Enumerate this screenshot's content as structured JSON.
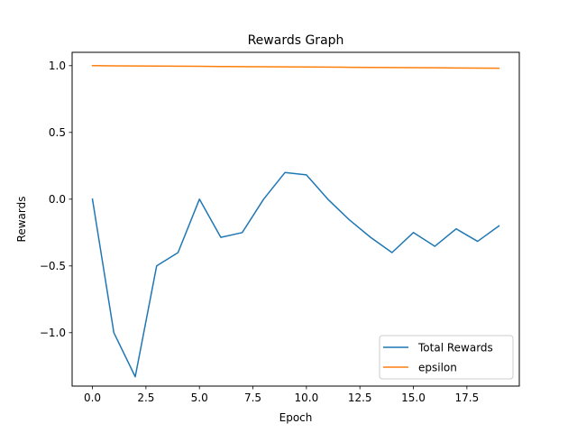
{
  "chart_data": {
    "type": "line",
    "title": "Rewards Graph",
    "xlabel": "Epoch",
    "ylabel": "Rewards",
    "xlim": [
      -0.95,
      19.95
    ],
    "ylim": [
      -1.4,
      1.1
    ],
    "x": [
      0,
      1,
      2,
      3,
      4,
      5,
      6,
      7,
      8,
      9,
      10,
      11,
      12,
      13,
      14,
      15,
      16,
      17,
      18,
      19
    ],
    "xticks": [
      0.0,
      2.5,
      5.0,
      7.5,
      10.0,
      12.5,
      15.0,
      17.5
    ],
    "xtick_labels": [
      "0.0",
      "2.5",
      "5.0",
      "7.5",
      "10.0",
      "12.5",
      "15.0",
      "17.5"
    ],
    "yticks": [
      1.0,
      0.5,
      0.0,
      -0.5,
      -1.0
    ],
    "ytick_labels": [
      "1.0",
      "0.5",
      "0.0",
      "−0.5",
      "−1.0"
    ],
    "grid": false,
    "legend_position": "lower-right",
    "series": [
      {
        "name": "Total Rewards",
        "color": "#1f77b4",
        "values": [
          0.0,
          -1.0,
          -1.33,
          -0.5,
          -0.4,
          0.0,
          -0.286,
          -0.25,
          0.0,
          0.2,
          0.182,
          0.0,
          -0.154,
          -0.286,
          -0.4,
          -0.25,
          -0.353,
          -0.222,
          -0.316,
          -0.2
        ]
      },
      {
        "name": "epsilon",
        "color": "#ff7f0e",
        "values": [
          1.0,
          0.999,
          0.998,
          0.997,
          0.996,
          0.995,
          0.994,
          0.993,
          0.992,
          0.991,
          0.99,
          0.989,
          0.988,
          0.987,
          0.986,
          0.985,
          0.984,
          0.983,
          0.982,
          0.981
        ]
      }
    ]
  }
}
